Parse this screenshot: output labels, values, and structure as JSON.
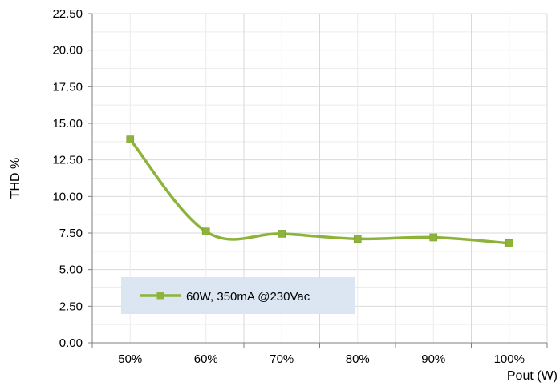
{
  "chart_data": {
    "type": "line",
    "title": "",
    "xlabel": "Pout (W)",
    "ylabel": "THD %",
    "categories": [
      "50%",
      "60%",
      "70%",
      "80%",
      "90%",
      "100%"
    ],
    "series": [
      {
        "name": "60W, 350mA @230Vac",
        "values": [
          13.9,
          7.6,
          7.45,
          7.1,
          7.2,
          6.8
        ],
        "color": "#8db33a",
        "marker": "square",
        "smooth": true
      }
    ],
    "ylim": [
      0,
      22.5
    ],
    "yticks": [
      "0.00",
      "2.50",
      "5.00",
      "7.50",
      "10.00",
      "12.50",
      "15.00",
      "17.50",
      "20.00",
      "22.50"
    ],
    "grid": true,
    "legend_position": "bottom-left",
    "colors": {
      "grid": "#d9d9d9",
      "axis": "#7f7f7f",
      "legend_bg": "#dce6f2"
    }
  }
}
